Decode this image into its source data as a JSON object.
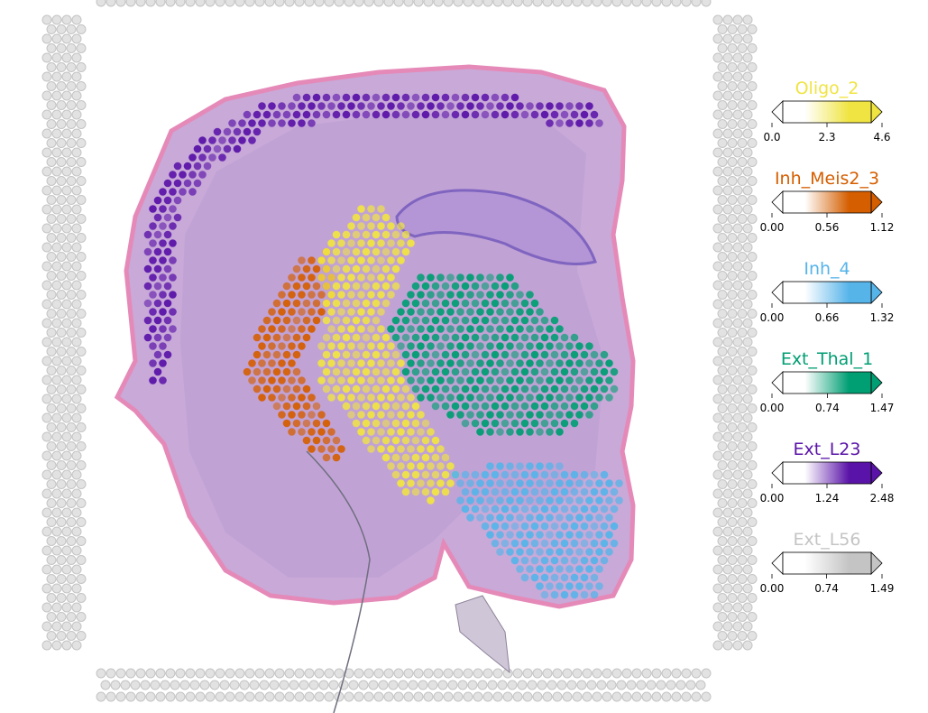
{
  "colorbars": [
    {
      "title": "Oligo_2",
      "color": "#f0e442",
      "ticks": [
        {
          "value": 0,
          "label": "0.0"
        },
        2.3,
        4.6
      ]
    },
    {
      "title": "Inh_Meis2_3",
      "color": "#d55e00",
      "ticks": [
        {
          "value": 0,
          "label": "0.00"
        },
        0.56,
        1.12
      ]
    },
    {
      "title": "Inh_4",
      "color": "#56b4e9",
      "ticks": [
        {
          "value": 0,
          "label": "0.00"
        },
        0.66,
        1.32
      ]
    },
    {
      "title": "Ext_Thal_1",
      "color": "#009e73",
      "ticks": [
        {
          "value": 0,
          "label": "0.00"
        },
        0.74,
        1.47
      ]
    },
    {
      "title": "Ext_L23",
      "color": "#5a13a8",
      "ticks": [
        {
          "value": 0,
          "label": "0.00"
        },
        1.24,
        2.48
      ]
    },
    {
      "title": "Ext_L56",
      "color": "#c4c4c4",
      "ticks": [
        {
          "value": 0,
          "label": "0.00"
        },
        0.74,
        1.49
      ]
    }
  ]
}
